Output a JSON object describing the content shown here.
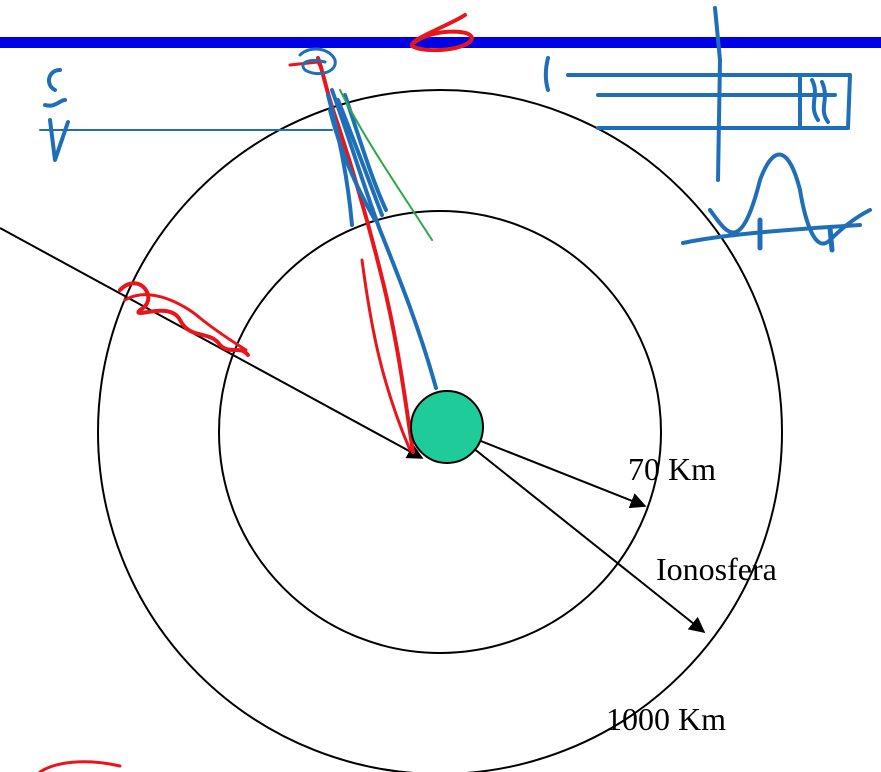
{
  "colors": {
    "background": "#ffffff",
    "title_bar": "#0000e6",
    "circles": "#000000",
    "earth": "#1fcc99",
    "ink_red": "#e8161b",
    "ink_blue": "#1f6fb8",
    "ink_green": "#2aa84a"
  },
  "labels": {
    "inner_radius": "70 Km",
    "ionosphere": "Ionosfera",
    "outer_radius": "1000 Km"
  }
}
